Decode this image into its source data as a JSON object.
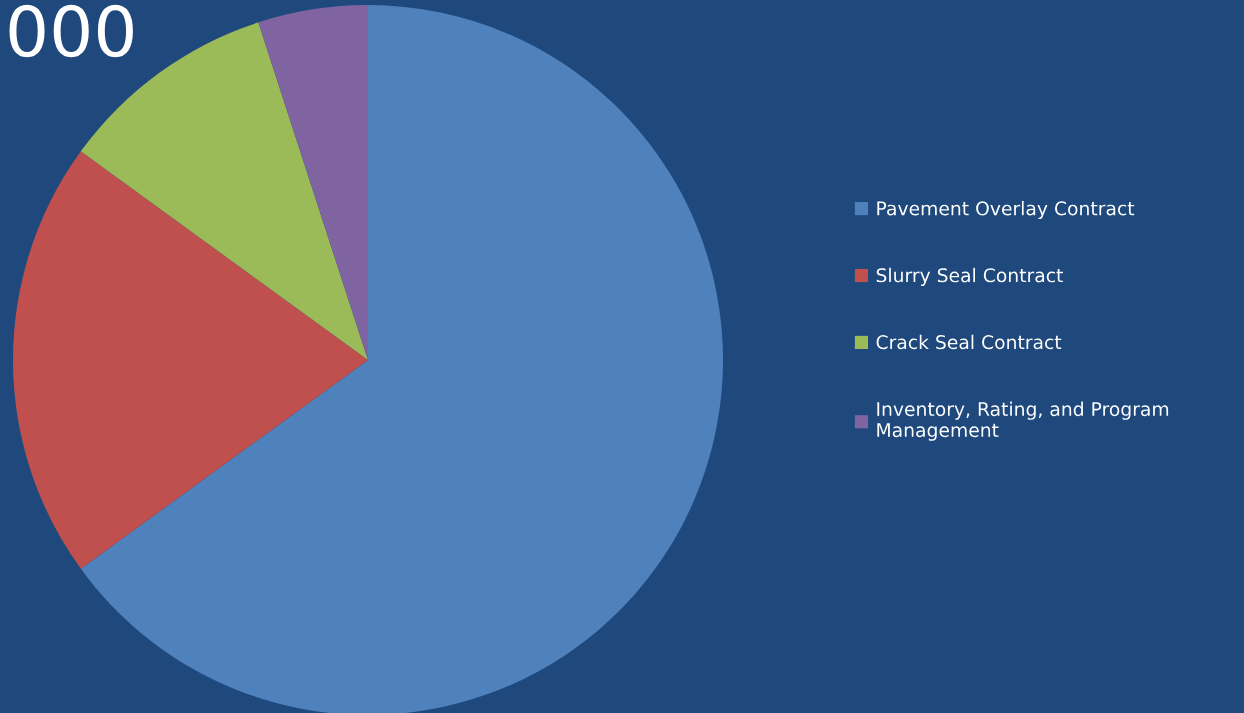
{
  "chart_data": {
    "type": "pie",
    "title": "000",
    "categories": [
      "Pavement Overlay Contract",
      "Slurry Seal Contract",
      "Crack Seal Contract",
      "Inventory, Rating, and Program\nManagement"
    ],
    "values": [
      65,
      20,
      10,
      5
    ],
    "colors": [
      "#4f81bd",
      "#c0504d",
      "#9bbb59",
      "#8064a2"
    ],
    "legend": "right"
  }
}
